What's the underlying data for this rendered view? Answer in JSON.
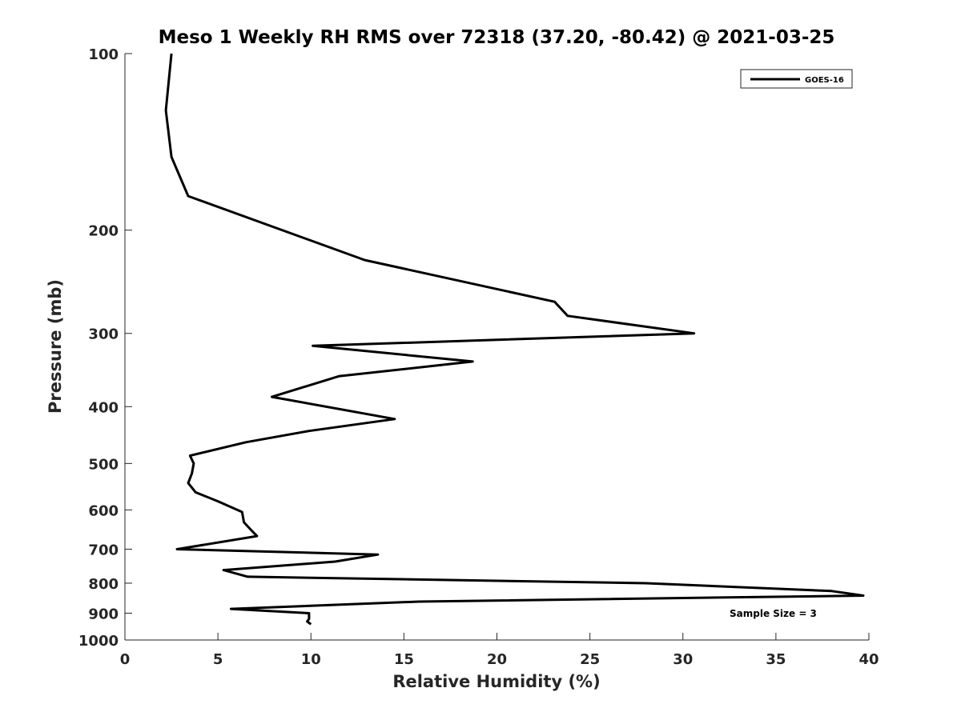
{
  "chart_data": {
    "type": "line",
    "title": "Meso 1 Weekly RH RMS over 72318 (37.20, -80.42) @ 2021-03-25",
    "xlabel": "Relative Humidity (%)",
    "ylabel": "Pressure (mb)",
    "xlim": [
      0,
      40
    ],
    "ylim": [
      100,
      1000
    ],
    "yscale": "log",
    "yreversed": true,
    "xticks": [
      0,
      5,
      10,
      15,
      20,
      25,
      30,
      35,
      40
    ],
    "yticks": [
      100,
      200,
      300,
      400,
      500,
      600,
      700,
      800,
      900,
      1000
    ],
    "grid": false,
    "legend_position": "top-right",
    "annotation": "Sample Size = 3",
    "series": [
      {
        "name": "GOES-16",
        "color": "#000000",
        "points": [
          {
            "x": 2.5,
            "p": 100
          },
          {
            "x": 2.2,
            "p": 125
          },
          {
            "x": 2.5,
            "p": 150
          },
          {
            "x": 3.4,
            "p": 175
          },
          {
            "x": 12.9,
            "p": 225
          },
          {
            "x": 23.1,
            "p": 265
          },
          {
            "x": 23.8,
            "p": 280
          },
          {
            "x": 30.6,
            "p": 300
          },
          {
            "x": 10.1,
            "p": 315
          },
          {
            "x": 18.7,
            "p": 335
          },
          {
            "x": 11.5,
            "p": 355
          },
          {
            "x": 7.9,
            "p": 385
          },
          {
            "x": 14.5,
            "p": 420
          },
          {
            "x": 9.9,
            "p": 440
          },
          {
            "x": 6.5,
            "p": 460
          },
          {
            "x": 3.5,
            "p": 485
          },
          {
            "x": 3.7,
            "p": 500
          },
          {
            "x": 3.6,
            "p": 520
          },
          {
            "x": 3.4,
            "p": 540
          },
          {
            "x": 3.8,
            "p": 560
          },
          {
            "x": 5.0,
            "p": 580
          },
          {
            "x": 6.3,
            "p": 605
          },
          {
            "x": 6.4,
            "p": 630
          },
          {
            "x": 6.8,
            "p": 650
          },
          {
            "x": 7.1,
            "p": 665
          },
          {
            "x": 2.8,
            "p": 700
          },
          {
            "x": 13.6,
            "p": 715
          },
          {
            "x": 11.3,
            "p": 735
          },
          {
            "x": 5.3,
            "p": 760
          },
          {
            "x": 6.6,
            "p": 780
          },
          {
            "x": 28.0,
            "p": 800
          },
          {
            "x": 38.0,
            "p": 825
          },
          {
            "x": 39.7,
            "p": 840
          },
          {
            "x": 15.8,
            "p": 860
          },
          {
            "x": 5.7,
            "p": 885
          },
          {
            "x": 9.9,
            "p": 900
          },
          {
            "x": 9.9,
            "p": 920
          },
          {
            "x": 9.8,
            "p": 930
          },
          {
            "x": 10.0,
            "p": 940
          }
        ]
      }
    ]
  }
}
